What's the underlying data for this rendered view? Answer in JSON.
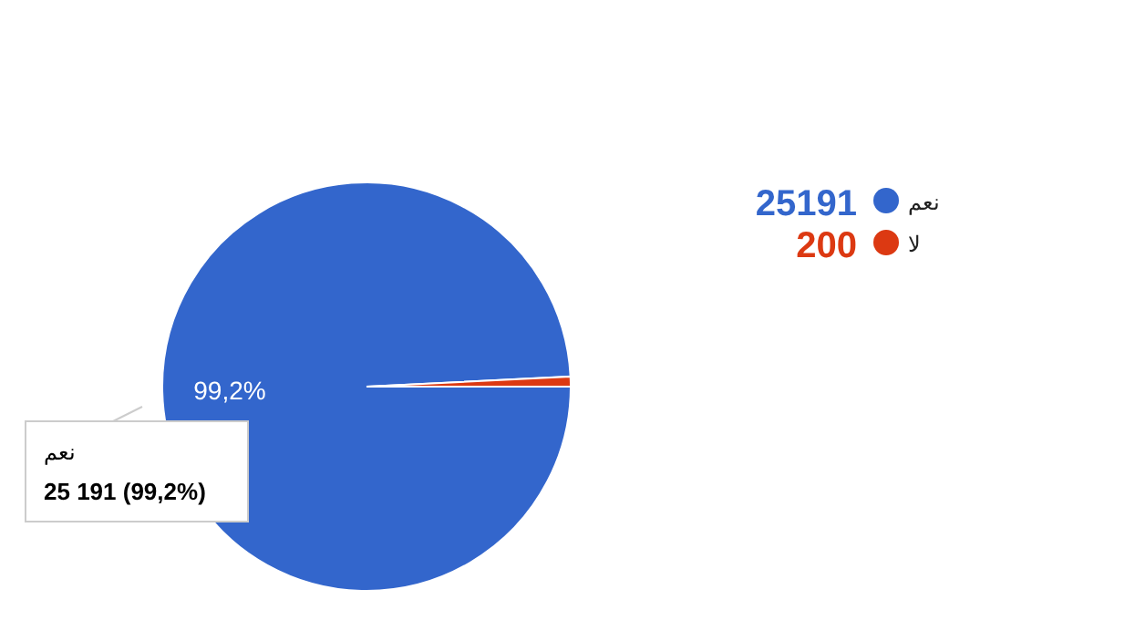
{
  "chart_data": {
    "type": "pie",
    "categories": [
      "نعم",
      "لا"
    ],
    "values": [
      25191,
      200
    ],
    "colors": [
      "#3366cc",
      "#dc3912"
    ],
    "value_labels": [
      "25191",
      "200"
    ],
    "legend": "right",
    "annotations": [
      "99,2%",
      "نعم",
      "25 191 (99,2%)"
    ]
  }
}
